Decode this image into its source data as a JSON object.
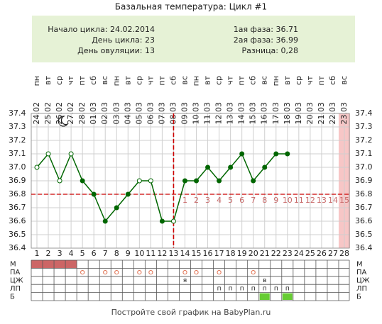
{
  "header": {
    "title": "Базальная температура: Цикл #1",
    "left_info": [
      "Начало цикла: 24.02.2014",
      "День цикла: 23",
      "День овуляции: 13"
    ],
    "right_info": [
      "1ая фаза: 36.71",
      "2ая фаза: 36.99",
      "Разница: 0,28"
    ]
  },
  "chart_data": {
    "type": "line",
    "x": [
      1,
      2,
      3,
      4,
      5,
      6,
      7,
      8,
      9,
      10,
      11,
      12,
      13,
      14,
      15,
      16,
      17,
      18,
      19,
      20,
      21,
      22,
      23,
      24,
      25,
      26,
      27,
      28
    ],
    "weekdays": [
      "пн",
      "вт",
      "ср",
      "чт",
      "пт",
      "сб",
      "вс",
      "пн",
      "вт",
      "ср",
      "чт",
      "пт",
      "сб",
      "вс",
      "пн",
      "вт",
      "ср",
      "чт",
      "пт",
      "сб",
      "вс",
      "пн",
      "вт",
      "ср",
      "чт",
      "пт",
      "сб",
      "вс"
    ],
    "dates": [
      "24.02",
      "25.02",
      "26.02",
      "27.02",
      "28.02",
      "01.03",
      "02.03",
      "03.03",
      "04.03",
      "05.03",
      "06.03",
      "07.03",
      "08.03",
      "09.03",
      "10.03",
      "11.03",
      "12.03",
      "13.03",
      "14.03",
      "15.03",
      "16.03",
      "17.03",
      "18.03",
      "19.03",
      "20.03",
      "21.03",
      "22.03",
      "23.03"
    ],
    "series": [
      {
        "color": "#006600",
        "values": [
          37.0,
          37.1,
          36.9,
          37.1,
          36.9,
          36.8,
          36.6,
          36.7,
          36.8,
          36.9,
          36.9,
          36.6,
          36.6,
          36.9,
          36.9,
          37.0,
          36.9,
          37.0,
          37.1,
          36.9,
          37.0,
          37.1,
          37.1,
          null,
          null,
          null,
          null,
          null
        ],
        "markers": [
          "open",
          "open",
          "open",
          "open",
          "filled",
          "filled",
          "filled",
          "filled",
          "filled",
          "open",
          "open",
          "filled",
          "open",
          "filled",
          "filled",
          "filled",
          "filled",
          "filled",
          "filled",
          "filled",
          "filled",
          "filled",
          "filled",
          null,
          null,
          null,
          null,
          null
        ]
      }
    ],
    "xlim": [
      1,
      28
    ],
    "ylim": [
      36.4,
      37.4
    ],
    "yticks": [
      36.4,
      36.5,
      36.6,
      36.7,
      36.8,
      36.9,
      {
        "value": 37,
        "label": "37.0"
      },
      37.1,
      37.2,
      37.3,
      37.4
    ],
    "grid": true,
    "coverline": 36.8,
    "coverline_color": "#cc0000",
    "ovulation_day": 13,
    "post_ovulation_labels": [
      1,
      2,
      3,
      4,
      5,
      6,
      7,
      8,
      9,
      10,
      11,
      12,
      13,
      14,
      15
    ],
    "highlight_day": 28,
    "highlight_color": "#f7c6c6"
  },
  "table": {
    "row_labels": [
      "М",
      "ПА",
      "ЦЖ",
      "ЛП",
      "Б"
    ],
    "menstruation_days": [
      1,
      2,
      3,
      4
    ],
    "pa_days": [
      5,
      7,
      8,
      10,
      11,
      14,
      15,
      17,
      20
    ],
    "cz_marks": [
      null,
      null,
      null,
      null,
      null,
      null,
      null,
      null,
      null,
      null,
      null,
      null,
      null,
      "я",
      null,
      null,
      null,
      null,
      null,
      null,
      "в",
      null,
      null,
      null,
      null,
      null,
      null,
      null
    ],
    "lp_marks": [
      null,
      null,
      null,
      null,
      null,
      null,
      null,
      null,
      null,
      null,
      null,
      null,
      null,
      null,
      null,
      null,
      "п",
      "п",
      "п",
      "п",
      "п",
      "п",
      "п",
      null,
      null,
      null,
      null,
      null
    ],
    "b_days": [
      21,
      23
    ]
  },
  "footer": "Постройте свой график на BabyPlan.ru"
}
